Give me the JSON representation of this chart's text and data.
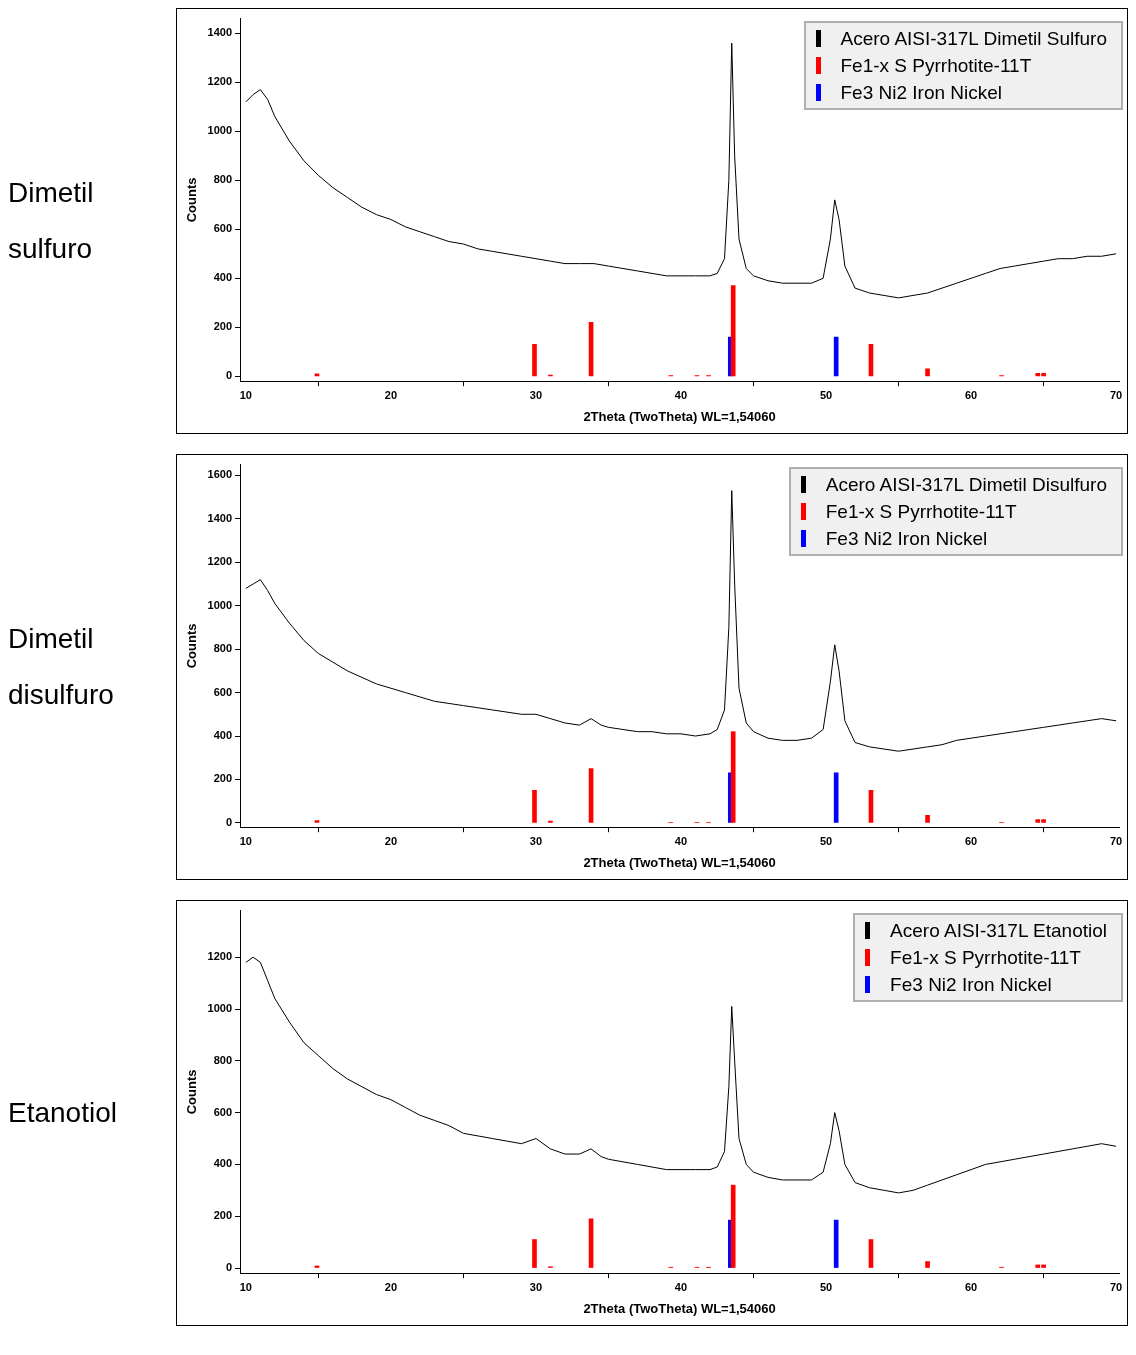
{
  "chart_data": [
    {
      "type": "line",
      "title": "Dimetil sulfuro",
      "xlabel": "2Theta (TwoTheta) WL=1,54060",
      "ylabel": "Counts",
      "xlim": [
        9.6,
        70.2
      ],
      "xticks": [
        10,
        20,
        30,
        40,
        50,
        60,
        70
      ],
      "ylim": [
        -20,
        1460
      ],
      "yticks": [
        0,
        200,
        400,
        600,
        800,
        1000,
        1200,
        1400
      ],
      "grid": false,
      "legend": "top right",
      "marker": "none",
      "series": [
        {
          "name": "Acero AISI-317L Dimetil Sulfuro",
          "color": "#000000",
          "x": [
            10,
            10.5,
            11,
            11.5,
            12,
            13,
            14,
            15,
            16,
            17,
            18,
            19,
            20,
            21,
            22,
            23,
            24,
            25,
            26,
            27,
            28,
            29,
            30,
            31,
            32,
            33,
            34,
            35,
            36,
            37,
            38,
            39,
            40,
            41,
            42,
            42.5,
            43,
            43.3,
            43.5,
            43.7,
            44,
            44.5,
            45,
            46,
            47,
            48,
            49,
            49.8,
            50.3,
            50.6,
            50.9,
            51.3,
            52,
            53,
            54,
            55,
            56,
            57,
            58,
            59,
            60,
            61,
            62,
            63,
            64,
            65,
            66,
            67,
            68,
            69,
            70
          ],
          "values": [
            1120,
            1150,
            1170,
            1130,
            1060,
            960,
            880,
            820,
            770,
            730,
            690,
            660,
            640,
            610,
            590,
            570,
            550,
            540,
            520,
            510,
            500,
            490,
            480,
            470,
            460,
            460,
            460,
            450,
            440,
            430,
            420,
            410,
            410,
            410,
            410,
            420,
            480,
            800,
            1360,
            900,
            560,
            440,
            410,
            390,
            380,
            380,
            380,
            400,
            560,
            720,
            640,
            450,
            360,
            340,
            330,
            320,
            330,
            340,
            360,
            380,
            400,
            420,
            440,
            450,
            460,
            470,
            480,
            480,
            490,
            490,
            500
          ]
        },
        {
          "name": "Fe1-x S Pyrrhotite-11T",
          "type": "bar",
          "color": "#ff0000",
          "x": [
            14.9,
            29.9,
            31.0,
            33.8,
            39.3,
            41.1,
            41.9,
            43.6,
            53.1,
            57.0,
            62.1,
            64.6,
            65.0
          ],
          "values": [
            10,
            130,
            5,
            220,
            3,
            3,
            3,
            370,
            130,
            30,
            3,
            12,
            12
          ]
        },
        {
          "name": "Fe3 Ni2 Iron Nickel",
          "type": "bar",
          "color": "#0000ff",
          "x": [
            43.4,
            50.7
          ],
          "values": [
            160,
            160
          ]
        }
      ]
    },
    {
      "type": "line",
      "title": "Dimetil disulfuro",
      "xlabel": "2Theta (TwoTheta) WL=1,54060",
      "ylabel": "Counts",
      "xlim": [
        9.6,
        70.2
      ],
      "xticks": [
        10,
        20,
        30,
        40,
        50,
        60,
        70
      ],
      "ylim": [
        -20,
        1650
      ],
      "yticks": [
        0,
        200,
        400,
        600,
        800,
        1000,
        1200,
        1400,
        1600
      ],
      "grid": false,
      "legend": "top right",
      "marker": "none",
      "series": [
        {
          "name": "Acero AISI-317L Dimetil Disulfuro",
          "color": "#000000",
          "x": [
            10,
            10.5,
            11,
            11.5,
            12,
            13,
            14,
            15,
            16,
            17,
            18,
            19,
            20,
            21,
            22,
            23,
            24,
            25,
            26,
            27,
            28,
            29,
            30,
            31,
            32,
            33,
            33.8,
            34.5,
            35,
            36,
            37,
            38,
            39,
            40,
            41,
            42,
            42.5,
            43,
            43.3,
            43.5,
            43.7,
            44,
            44.5,
            45,
            46,
            47,
            48,
            49,
            49.8,
            50.3,
            50.6,
            50.9,
            51.3,
            52,
            53,
            54,
            55,
            56,
            57,
            58,
            59,
            60,
            61,
            62,
            63,
            64,
            65,
            66,
            67,
            68,
            69,
            70
          ],
          "values": [
            1080,
            1100,
            1120,
            1070,
            1010,
            920,
            840,
            780,
            740,
            700,
            670,
            640,
            620,
            600,
            580,
            560,
            550,
            540,
            530,
            520,
            510,
            500,
            500,
            480,
            460,
            450,
            480,
            450,
            440,
            430,
            420,
            420,
            410,
            410,
            400,
            410,
            430,
            520,
            900,
            1530,
            1100,
            620,
            460,
            420,
            390,
            380,
            380,
            390,
            430,
            650,
            820,
            700,
            470,
            370,
            350,
            340,
            330,
            340,
            350,
            360,
            380,
            390,
            400,
            410,
            420,
            430,
            440,
            450,
            460,
            470,
            480,
            470
          ]
        },
        {
          "name": "Fe1-x S Pyrrhotite-11T",
          "type": "bar",
          "color": "#ff0000",
          "x": [
            14.9,
            29.9,
            31.0,
            33.8,
            39.3,
            41.1,
            41.9,
            43.6,
            53.1,
            57.0,
            62.1,
            64.6,
            65.0
          ],
          "values": [
            10,
            150,
            8,
            250,
            3,
            3,
            3,
            420,
            150,
            35,
            3,
            15,
            15
          ]
        },
        {
          "name": "Fe3 Ni2 Iron Nickel",
          "type": "bar",
          "color": "#0000ff",
          "x": [
            43.4,
            50.7
          ],
          "values": [
            230,
            230
          ]
        }
      ]
    },
    {
      "type": "line",
      "title": "Etanotiol",
      "xlabel": "2Theta (TwoTheta) WL=1,54060",
      "ylabel": "Counts",
      "xlim": [
        9.6,
        70.2
      ],
      "xticks": [
        10,
        20,
        30,
        40,
        50,
        60,
        70
      ],
      "ylim": [
        -20,
        1380
      ],
      "yticks": [
        0,
        200,
        400,
        600,
        800,
        1000,
        1200
      ],
      "grid": false,
      "legend": "top right",
      "marker": "none",
      "series": [
        {
          "name": "Acero AISI-317L Etanotiol",
          "color": "#000000",
          "x": [
            10,
            10.5,
            11,
            11.5,
            12,
            13,
            14,
            15,
            16,
            17,
            18,
            19,
            20,
            21,
            22,
            23,
            24,
            25,
            26,
            27,
            28,
            29,
            30,
            31,
            32,
            33,
            33.8,
            34.5,
            35,
            36,
            37,
            38,
            39,
            40,
            41,
            42,
            42.5,
            43,
            43.3,
            43.5,
            43.7,
            44,
            44.5,
            45,
            46,
            47,
            48,
            49,
            49.8,
            50.3,
            50.6,
            50.9,
            51.3,
            52,
            53,
            54,
            55,
            56,
            57,
            58,
            59,
            60,
            61,
            62,
            63,
            64,
            65,
            66,
            67,
            68,
            69,
            70
          ],
          "values": [
            1180,
            1200,
            1180,
            1110,
            1040,
            950,
            870,
            820,
            770,
            730,
            700,
            670,
            650,
            620,
            590,
            570,
            550,
            520,
            510,
            500,
            490,
            480,
            500,
            460,
            440,
            440,
            460,
            430,
            420,
            410,
            400,
            390,
            380,
            380,
            380,
            380,
            390,
            450,
            700,
            1010,
            800,
            500,
            400,
            370,
            350,
            340,
            340,
            340,
            370,
            480,
            600,
            530,
            400,
            330,
            310,
            300,
            290,
            300,
            320,
            340,
            360,
            380,
            400,
            410,
            420,
            430,
            440,
            450,
            460,
            470,
            480,
            470
          ]
        },
        {
          "name": "Fe1-x S Pyrrhotite-11T",
          "type": "bar",
          "color": "#ff0000",
          "x": [
            14.9,
            29.9,
            31.0,
            33.8,
            39.3,
            41.1,
            41.9,
            43.6,
            53.1,
            57.0,
            62.1,
            64.6,
            65.0
          ],
          "values": [
            8,
            110,
            5,
            190,
            3,
            3,
            3,
            320,
            110,
            25,
            3,
            12,
            12
          ]
        },
        {
          "name": "Fe3 Ni2 Iron Nickel",
          "type": "bar",
          "color": "#0000ff",
          "x": [
            43.4,
            50.7
          ],
          "values": [
            185,
            185
          ]
        }
      ]
    }
  ]
}
